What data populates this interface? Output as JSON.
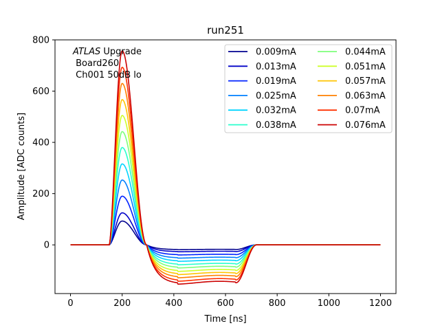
{
  "chart_data": {
    "type": "line",
    "title": "run251",
    "xlabel": "Time [ns]",
    "ylabel": "Amplitude [ADC counts]",
    "xlim": [
      -60,
      1260
    ],
    "ylim": [
      -190,
      800
    ],
    "xticks": [
      0,
      200,
      400,
      600,
      800,
      1000,
      1200
    ],
    "yticks": [
      0,
      200,
      400,
      600,
      800
    ],
    "grid": false,
    "legend": {
      "placement": "top-right",
      "columns": 2
    },
    "annotation": {
      "experiment": "ATLAS",
      "experiment_suffix": " Upgrade",
      "line2": " Board260",
      "line3": " Ch001 50dB lo"
    },
    "pulse_shape": {
      "onset_ns": 150,
      "peak_ns": 200,
      "zero_cross_ns": 295,
      "undershoot_end_ns": 640,
      "recovery_ns": 720
    },
    "series": [
      {
        "name": "0.009mA",
        "color": "#00008f",
        "peak": 93,
        "undershoot": -18
      },
      {
        "name": "0.013mA",
        "color": "#0000c8",
        "peak": 125,
        "undershoot": -26
      },
      {
        "name": "0.019mA",
        "color": "#0022ff",
        "peak": 190,
        "undershoot": -38
      },
      {
        "name": "0.025mA",
        "color": "#0080ff",
        "peak": 253,
        "undershoot": -50
      },
      {
        "name": "0.032mA",
        "color": "#00d4ff",
        "peak": 316,
        "undershoot": -62
      },
      {
        "name": "0.038mA",
        "color": "#29ffce",
        "peak": 380,
        "undershoot": -75
      },
      {
        "name": "0.044mA",
        "color": "#7dff7a",
        "peak": 442,
        "undershoot": -87
      },
      {
        "name": "0.051mA",
        "color": "#ceff29",
        "peak": 505,
        "undershoot": -100
      },
      {
        "name": "0.057mA",
        "color": "#ffc400",
        "peak": 567,
        "undershoot": -112
      },
      {
        "name": "0.063mA",
        "color": "#ff8000",
        "peak": 630,
        "undershoot": -124
      },
      {
        "name": "0.07mA",
        "color": "#ff3000",
        "peak": 693,
        "undershoot": -137
      },
      {
        "name": "0.076mA",
        "color": "#cc0000",
        "peak": 757,
        "undershoot": -148
      }
    ]
  }
}
